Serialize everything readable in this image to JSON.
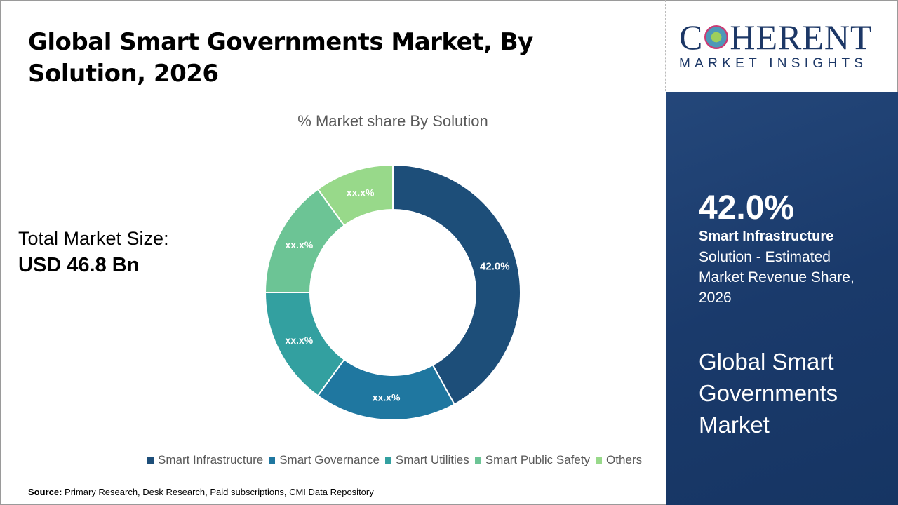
{
  "header": {
    "title": "Global Smart Governments Market, By Solution, 2026"
  },
  "market_size": {
    "label": "Total Market Size:",
    "value": "USD 46.8 Bn"
  },
  "logo": {
    "main": "COHERENT",
    "sub": "MARKET INSIGHTS"
  },
  "highlight": {
    "percent": "42.0%",
    "segment": "Smart Infrastructure",
    "description": "Solution - Estimated Market Revenue Share, 2026",
    "market_name": "Global Smart Governments Market"
  },
  "source": {
    "label": "Source:",
    "text": "Primary Research, Desk Research, Paid subscriptions, CMI Data Repository"
  },
  "chart_data": {
    "type": "pie",
    "subtype": "donut",
    "title": "% Market share By Solution",
    "categories": [
      "Smart Infrastructure",
      "Smart Governance",
      "Smart Utilities",
      "Smart Public Safety",
      "Others"
    ],
    "values": [
      42.0,
      18.0,
      15.0,
      15.0,
      10.0
    ],
    "data_labels": [
      "42.0%",
      "xx.x%",
      "xx.x%",
      "xx.x%",
      "xx.x%"
    ],
    "colors": [
      "#1d4e79",
      "#1f77a0",
      "#33a0a0",
      "#6cc495",
      "#98d98a"
    ],
    "legend_position": "bottom"
  }
}
